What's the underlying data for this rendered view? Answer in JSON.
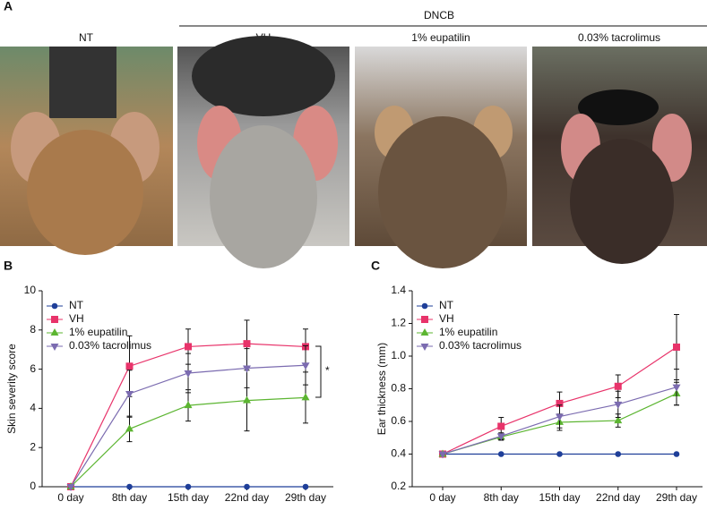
{
  "panel_a": {
    "label": "A",
    "group": "DNCB",
    "photos": [
      "NT",
      "VH",
      "1% eupatilin",
      "0.03% tacrolimus"
    ]
  },
  "chart_data": [
    {
      "type": "line",
      "panel": "B",
      "ylabel": "Skin severity score",
      "annotation": "*",
      "categories": [
        "0 day",
        "8th day",
        "15th day",
        "22nd day",
        "29th day"
      ],
      "ylim": [
        0,
        10
      ],
      "yticks": [
        0,
        2,
        4,
        6,
        8,
        10
      ],
      "legend": "top-left",
      "series": [
        {
          "name": "NT",
          "color": "#1f3f99",
          "marker": "circle",
          "values": [
            0,
            0,
            0,
            0,
            0
          ],
          "errors": [
            0,
            0,
            0,
            0,
            0
          ]
        },
        {
          "name": "VH",
          "color": "#e8336a",
          "marker": "square",
          "values": [
            0,
            6.15,
            7.15,
            7.3,
            7.15
          ],
          "errors": [
            0,
            1.55,
            0.9,
            1.2,
            0.9
          ]
        },
        {
          "name": "1% eupatilin",
          "color": "#5cb531",
          "marker": "triangle-up",
          "values": [
            0,
            2.95,
            4.15,
            4.4,
            4.55
          ],
          "errors": [
            0,
            0.65,
            0.8,
            1.55,
            1.3
          ]
        },
        {
          "name": "0.03% tacrolimus",
          "color": "#7b6bb0",
          "marker": "triangle-down",
          "values": [
            0,
            4.75,
            5.8,
            6.05,
            6.2
          ],
          "errors": [
            0,
            1.2,
            1.0,
            1.0,
            1.0
          ]
        }
      ]
    },
    {
      "type": "line",
      "panel": "C",
      "ylabel": "Ear thickness (mm)",
      "categories": [
        "0 day",
        "8th day",
        "15th day",
        "22nd day",
        "29th day"
      ],
      "ylim": [
        0.2,
        1.4
      ],
      "yticks": [
        0.2,
        0.4,
        0.6,
        0.8,
        {
          "value": 1,
          "label": "1.0"
        },
        1.2,
        1.4
      ],
      "legend": "top-left",
      "series": [
        {
          "name": "NT",
          "color": "#1f3f99",
          "marker": "circle",
          "values": [
            0.4,
            0.4,
            0.4,
            0.4,
            0.4
          ],
          "errors": [
            0,
            0,
            0,
            0,
            0
          ]
        },
        {
          "name": "VH",
          "color": "#e8336a",
          "marker": "square",
          "values": [
            0.4,
            0.57,
            0.71,
            0.815,
            1.055
          ],
          "errors": [
            0,
            0.055,
            0.07,
            0.07,
            0.2
          ]
        },
        {
          "name": "1% eupatilin",
          "color": "#5cb531",
          "marker": "triangle-up",
          "values": [
            0.4,
            0.505,
            0.595,
            0.605,
            0.77
          ],
          "errors": [
            0,
            0.02,
            0.05,
            0.04,
            0.07
          ]
        },
        {
          "name": "0.03% tacrolimus",
          "color": "#7b6bb0",
          "marker": "triangle-down",
          "values": [
            0.4,
            0.51,
            0.63,
            0.705,
            0.81
          ],
          "errors": [
            0,
            0.02,
            0.07,
            0.08,
            0.11
          ]
        }
      ]
    }
  ]
}
